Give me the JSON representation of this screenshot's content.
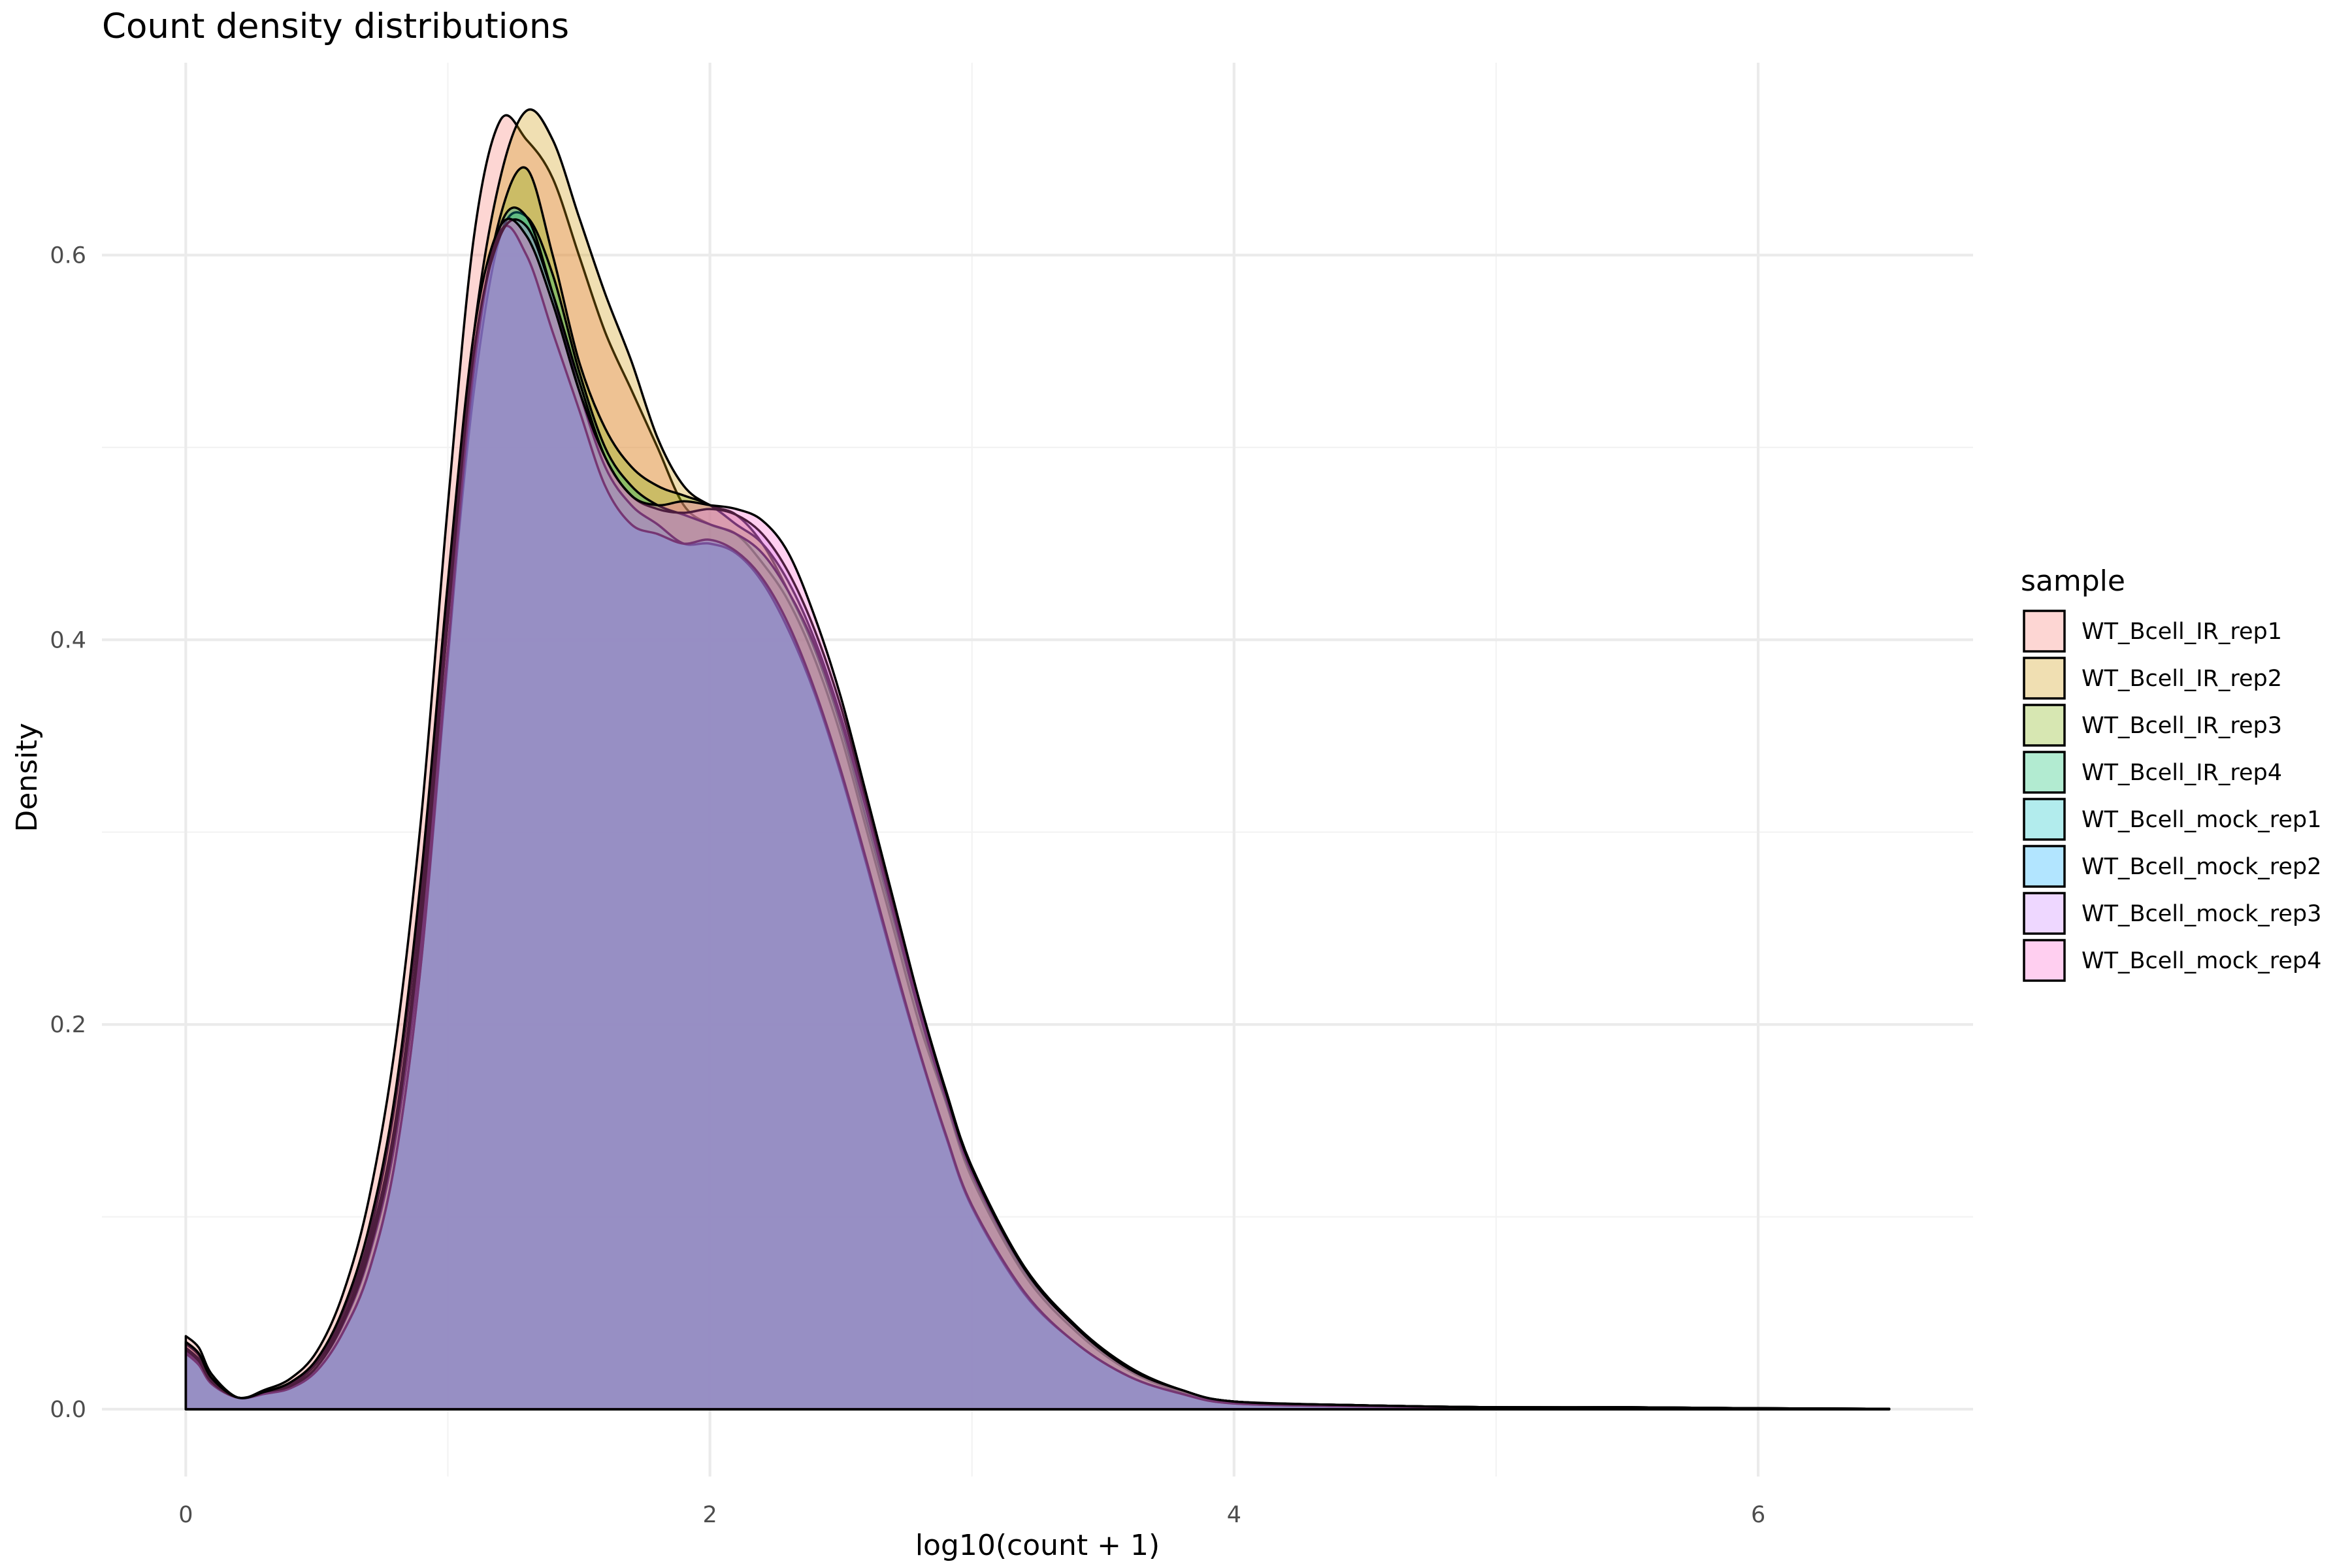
{
  "chart_data": {
    "type": "area",
    "title": "Count density distributions",
    "xlabel": "log10(count + 1)",
    "ylabel": "Density",
    "xlim": [
      -0.32,
      6.82
    ],
    "ylim": [
      -0.035,
      0.7
    ],
    "x_ticks": [
      0,
      2,
      4,
      6
    ],
    "y_ticks": [
      0.0,
      0.2,
      0.4,
      0.6
    ],
    "x_tick_labels": [
      "0",
      "2",
      "4",
      "6"
    ],
    "y_tick_labels": [
      "0.0",
      "0.2",
      "0.4",
      "0.6"
    ],
    "grid": true,
    "legend": {
      "title": "sample",
      "position": "right"
    },
    "x": [
      0,
      0.05,
      0.1,
      0.2,
      0.3,
      0.4,
      0.5,
      0.6,
      0.7,
      0.8,
      0.9,
      1.0,
      1.1,
      1.2,
      1.3,
      1.4,
      1.5,
      1.6,
      1.7,
      1.8,
      1.9,
      2.0,
      2.1,
      2.2,
      2.3,
      2.4,
      2.5,
      2.6,
      2.7,
      2.8,
      2.9,
      3.0,
      3.2,
      3.4,
      3.6,
      3.8,
      4.0,
      4.5,
      5.0,
      5.5,
      6.0,
      6.5
    ],
    "series": [
      {
        "name": "WT_Bcell_IR_rep1",
        "color": "#F8766D",
        "values": [
          0.038,
          0.032,
          0.018,
          0.006,
          0.01,
          0.016,
          0.03,
          0.06,
          0.11,
          0.19,
          0.31,
          0.47,
          0.61,
          0.67,
          0.66,
          0.64,
          0.6,
          0.56,
          0.53,
          0.5,
          0.47,
          0.46,
          0.455,
          0.44,
          0.42,
          0.39,
          0.35,
          0.3,
          0.25,
          0.2,
          0.16,
          0.12,
          0.07,
          0.04,
          0.02,
          0.009,
          0.004,
          0.002,
          0.001,
          0.001,
          0.0005,
          0.0002
        ]
      },
      {
        "name": "WT_Bcell_IR_rep2",
        "color": "#CD9600",
        "values": [
          0.034,
          0.028,
          0.016,
          0.006,
          0.009,
          0.014,
          0.025,
          0.05,
          0.09,
          0.16,
          0.27,
          0.42,
          0.56,
          0.64,
          0.675,
          0.66,
          0.62,
          0.58,
          0.545,
          0.505,
          0.48,
          0.47,
          0.465,
          0.45,
          0.425,
          0.395,
          0.355,
          0.305,
          0.255,
          0.205,
          0.16,
          0.122,
          0.072,
          0.042,
          0.021,
          0.01,
          0.004,
          0.002,
          0.001,
          0.001,
          0.0005,
          0.0002
        ]
      },
      {
        "name": "WT_Bcell_IR_rep3",
        "color": "#7CAE00",
        "values": [
          0.032,
          0.026,
          0.015,
          0.006,
          0.009,
          0.013,
          0.024,
          0.047,
          0.086,
          0.15,
          0.26,
          0.41,
          0.545,
          0.62,
          0.645,
          0.6,
          0.545,
          0.51,
          0.49,
          0.48,
          0.475,
          0.47,
          0.46,
          0.45,
          0.43,
          0.4,
          0.36,
          0.312,
          0.262,
          0.21,
          0.165,
          0.125,
          0.074,
          0.043,
          0.022,
          0.01,
          0.004,
          0.002,
          0.001,
          0.001,
          0.0005,
          0.0002
        ]
      },
      {
        "name": "WT_Bcell_IR_rep4",
        "color": "#00BE67",
        "values": [
          0.031,
          0.025,
          0.014,
          0.006,
          0.008,
          0.012,
          0.022,
          0.044,
          0.08,
          0.14,
          0.245,
          0.395,
          0.53,
          0.61,
          0.62,
          0.59,
          0.54,
          0.5,
          0.48,
          0.47,
          0.465,
          0.46,
          0.455,
          0.445,
          0.425,
          0.397,
          0.358,
          0.31,
          0.258,
          0.206,
          0.162,
          0.123,
          0.073,
          0.042,
          0.021,
          0.01,
          0.004,
          0.002,
          0.001,
          0.001,
          0.0005,
          0.0002
        ]
      },
      {
        "name": "WT_Bcell_mock_rep1",
        "color": "#00BFC4",
        "values": [
          0.03,
          0.024,
          0.013,
          0.006,
          0.008,
          0.011,
          0.02,
          0.04,
          0.072,
          0.13,
          0.235,
          0.39,
          0.54,
          0.615,
          0.62,
          0.58,
          0.53,
          0.49,
          0.47,
          0.46,
          0.45,
          0.45,
          0.445,
          0.43,
          0.405,
          0.372,
          0.33,
          0.282,
          0.232,
          0.185,
          0.142,
          0.105,
          0.06,
          0.034,
          0.017,
          0.008,
          0.003,
          0.0015,
          0.001,
          0.0005,
          0.0003,
          0.0001
        ]
      },
      {
        "name": "WT_Bcell_mock_rep2",
        "color": "#00A9FF",
        "values": [
          0.029,
          0.023,
          0.013,
          0.006,
          0.008,
          0.011,
          0.02,
          0.04,
          0.072,
          0.13,
          0.235,
          0.395,
          0.545,
          0.612,
          0.6,
          0.56,
          0.52,
          0.48,
          0.46,
          0.455,
          0.45,
          0.452,
          0.446,
          0.432,
          0.408,
          0.374,
          0.332,
          0.284,
          0.234,
          0.186,
          0.143,
          0.106,
          0.061,
          0.034,
          0.017,
          0.008,
          0.003,
          0.0015,
          0.001,
          0.0005,
          0.0003,
          0.0001
        ]
      },
      {
        "name": "WT_Bcell_mock_rep3",
        "color": "#C77CFF",
        "values": [
          0.031,
          0.025,
          0.014,
          0.006,
          0.009,
          0.012,
          0.022,
          0.045,
          0.082,
          0.145,
          0.255,
          0.41,
          0.55,
          0.61,
          0.615,
          0.58,
          0.535,
          0.495,
          0.475,
          0.468,
          0.466,
          0.468,
          0.465,
          0.455,
          0.435,
          0.405,
          0.365,
          0.315,
          0.263,
          0.212,
          0.166,
          0.126,
          0.074,
          0.043,
          0.021,
          0.01,
          0.004,
          0.002,
          0.001,
          0.001,
          0.0005,
          0.0002
        ]
      },
      {
        "name": "WT_Bcell_mock_rep4",
        "color": "#FF61CC",
        "values": [
          0.035,
          0.029,
          0.016,
          0.006,
          0.009,
          0.014,
          0.026,
          0.052,
          0.095,
          0.165,
          0.28,
          0.43,
          0.56,
          0.615,
          0.61,
          0.575,
          0.53,
          0.495,
          0.475,
          0.47,
          0.472,
          0.47,
          0.468,
          0.462,
          0.445,
          0.412,
          0.37,
          0.318,
          0.265,
          0.212,
          0.165,
          0.125,
          0.073,
          0.042,
          0.021,
          0.01,
          0.004,
          0.002,
          0.001,
          0.001,
          0.0005,
          0.0002
        ]
      }
    ]
  }
}
